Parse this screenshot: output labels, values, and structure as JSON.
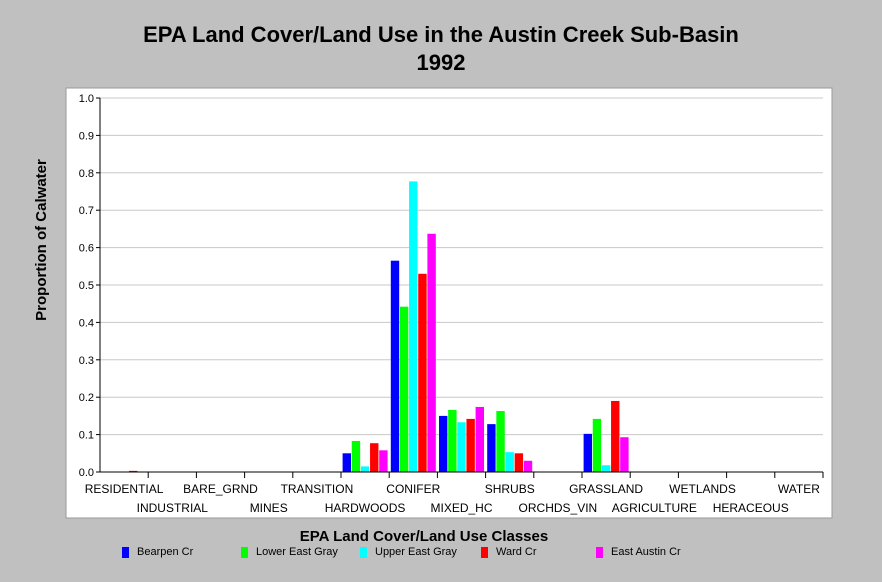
{
  "chart_data": {
    "type": "bar",
    "title": "EPA Land Cover/Land Use in the Austin Creek Sub-Basin",
    "subtitle": "1992",
    "xlabel": "EPA Land Cover/Land Use Classes",
    "ylabel": "Proportion of Calwater",
    "ylim": [
      0,
      1.0
    ],
    "yticks": [
      "0.0",
      "0.1",
      "0.2",
      "0.3",
      "0.4",
      "0.5",
      "0.6",
      "0.7",
      "0.8",
      "0.9",
      "1.0"
    ],
    "grid": true,
    "legend_position": "bottom",
    "categories": [
      "RESIDENTIAL",
      "INDUSTRIAL",
      "BARE_GRND",
      "MINES",
      "TRANSITION",
      "HARDWOODS",
      "CONIFER",
      "MIXED_HC",
      "SHRUBS",
      "ORCHDS_VIN",
      "GRASSLAND",
      "AGRICULTURE",
      "WETLANDS",
      "HERACEOUS",
      "WATER"
    ],
    "series": [
      {
        "name": "Bearpen Cr",
        "color": "#0000ff",
        "values": [
          0,
          0,
          0,
          0,
          0,
          0.05,
          0.565,
          0.15,
          0.128,
          0,
          0.102,
          0,
          0,
          0,
          0
        ]
      },
      {
        "name": "Lower East Gray",
        "color": "#00ff00",
        "values": [
          0,
          0,
          0,
          0,
          0,
          0.083,
          0.442,
          0.166,
          0.163,
          0,
          0.142,
          0,
          0,
          0,
          0
        ]
      },
      {
        "name": "Upper East Gray",
        "color": "#00ffff",
        "values": [
          0,
          0,
          0,
          0,
          0,
          0.015,
          0.777,
          0.133,
          0.053,
          0,
          0.018,
          0,
          0,
          0,
          0
        ]
      },
      {
        "name": "Ward Cr",
        "color": "#ff0000",
        "values": [
          0.003,
          0,
          0,
          0,
          0,
          0.077,
          0.53,
          0.142,
          0.05,
          0,
          0.19,
          0,
          0,
          0,
          0
        ]
      },
      {
        "name": "East Austin Cr",
        "color": "#ff00ff",
        "values": [
          0,
          0,
          0,
          0,
          0,
          0.058,
          0.637,
          0.174,
          0.03,
          0,
          0.093,
          0,
          0,
          0,
          0
        ]
      }
    ]
  }
}
